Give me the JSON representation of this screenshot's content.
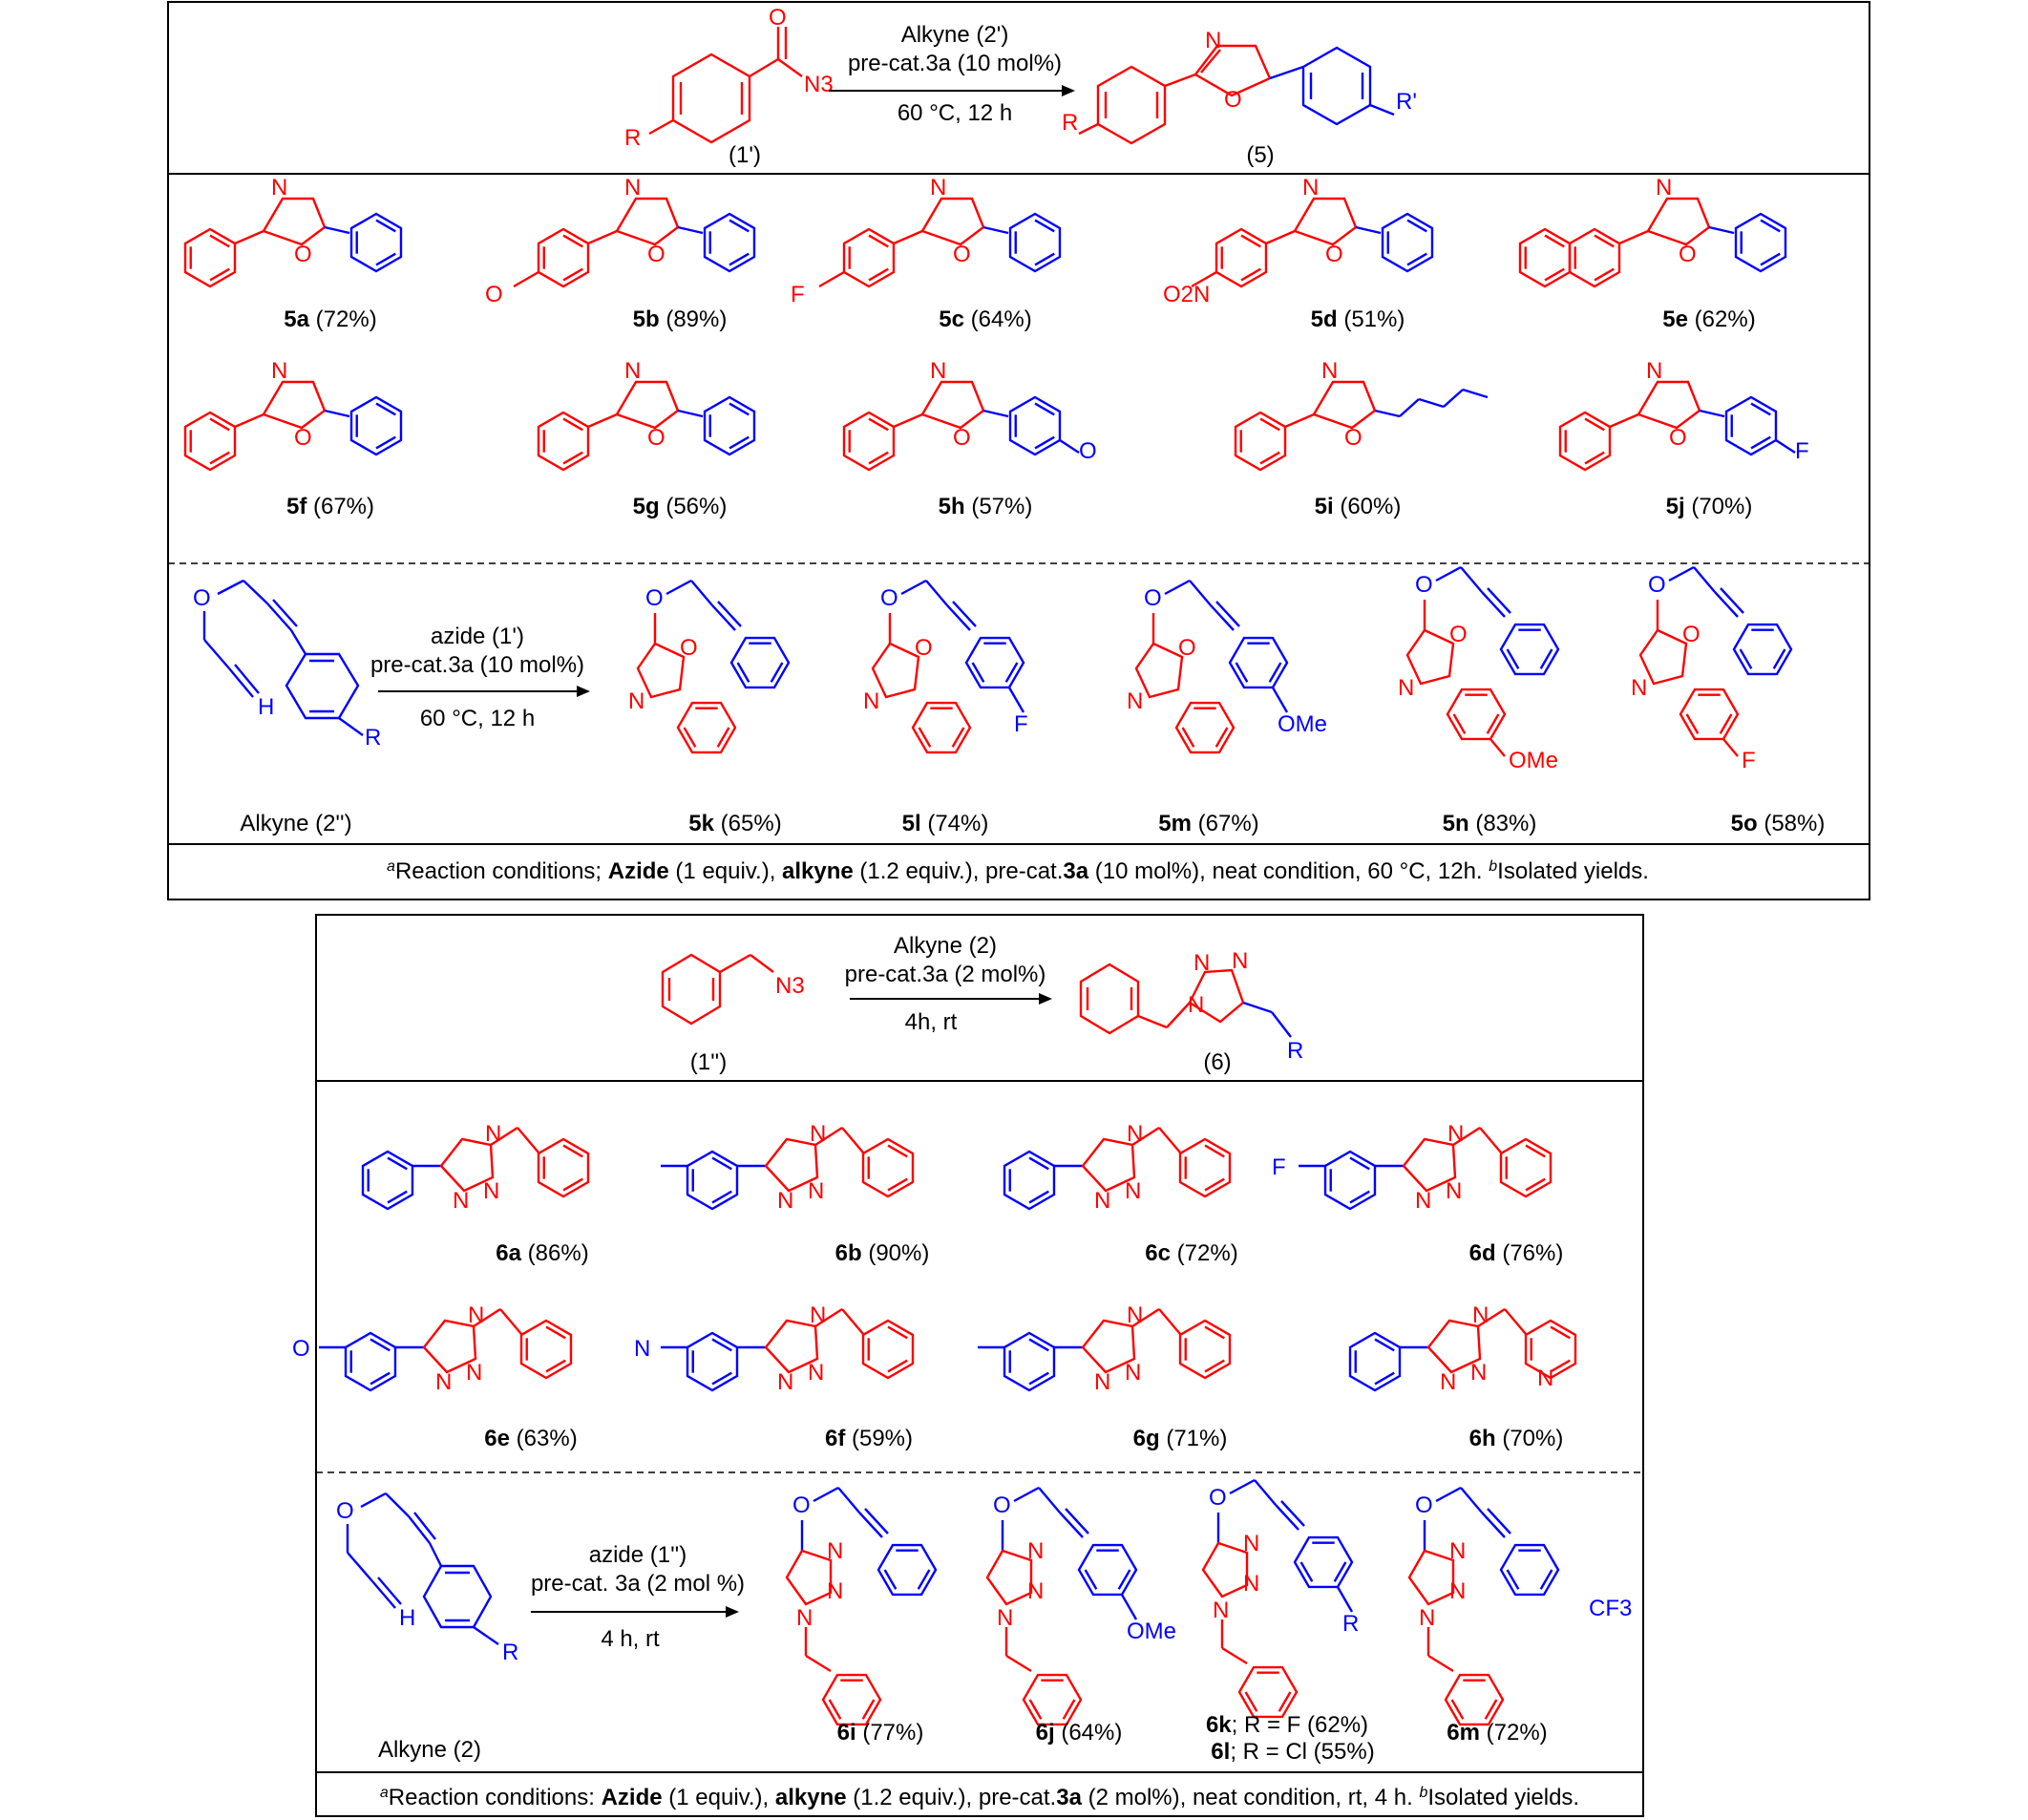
{
  "scheme1": {
    "reactant": "(1')",
    "product": "(5)",
    "reagent_line1": "Alkyne (2')",
    "reagent_line2": "pre-cat.3a (10 mol%)",
    "reagent_line3": "60 °C, 12 h",
    "compounds": [
      {
        "id": "5a",
        "yield": "(72%)"
      },
      {
        "id": "5b",
        "yield": "(89%)"
      },
      {
        "id": "5c",
        "yield": "(64%)"
      },
      {
        "id": "5d",
        "yield": "(51%)"
      },
      {
        "id": "5e",
        "yield": "(62%)"
      },
      {
        "id": "5f",
        "yield": "(67%)"
      },
      {
        "id": "5g",
        "yield": "(56%)"
      },
      {
        "id": "5h",
        "yield": "(57%)"
      },
      {
        "id": "5i",
        "yield": "(60%)"
      },
      {
        "id": "5j",
        "yield": "(70%)"
      }
    ],
    "alkyne_label": "Alkyne (2'')",
    "bottom_reagent_line1": "azide (1')",
    "bottom_reagent_line2": "pre-cat.3a (10 mol%)",
    "bottom_reagent_line3": "60 °C, 12 h",
    "bottom_compounds": [
      {
        "id": "5k",
        "yield": "(65%)"
      },
      {
        "id": "5l",
        "yield": "(74%)"
      },
      {
        "id": "5m",
        "yield": "(67%)"
      },
      {
        "id": "5n",
        "yield": "(83%)"
      },
      {
        "id": "5o",
        "yield": "(58%)"
      }
    ],
    "footnote": "aReaction conditions; Azide (1 equiv.), alkyne (1.2 equiv.), pre-cat.3a (10 mol%), neat condition, 60 °C, 12h. bIsolated yields."
  },
  "scheme2": {
    "reactant": "(1'')",
    "product": "(6)",
    "reagent_line1": "Alkyne (2)",
    "reagent_line2": "pre-cat.3a (2 mol%)",
    "reagent_line3": "4h, rt",
    "compounds": [
      {
        "id": "6a",
        "yield": "(86%)"
      },
      {
        "id": "6b",
        "yield": "(90%)"
      },
      {
        "id": "6c",
        "yield": "(72%)"
      },
      {
        "id": "6d",
        "yield": "(76%)"
      },
      {
        "id": "6e",
        "yield": "(63%)"
      },
      {
        "id": "6f",
        "yield": "(59%)"
      },
      {
        "id": "6g",
        "yield": "(71%)"
      },
      {
        "id": "6h",
        "yield": "(70%)"
      }
    ],
    "alkyne_label": "Alkyne (2)",
    "bottom_reagent_line1": "azide (1'')",
    "bottom_reagent_line2": "pre-cat. 3a (2 mol %)",
    "bottom_reagent_line3": "4 h, rt",
    "bottom_compounds": [
      {
        "id": "6i",
        "yield": "(77%)"
      },
      {
        "id": "6j",
        "yield": "(64%)"
      },
      {
        "id": "6k",
        "yield": "; R = F (62%)"
      },
      {
        "id": "6l",
        "yield": ";  R = Cl (55%)"
      },
      {
        "id": "6m",
        "yield": "(72%)"
      }
    ],
    "footnote": "aReaction conditions: Azide (1 equiv.), alkyne (1.2 equiv.), pre-cat.3a (2 mol%), neat condition, rt, 4 h. bIsolated yields."
  },
  "atoms": {
    "N": "N",
    "O": "O",
    "F": "F",
    "R": "R",
    "R_prime": "R'",
    "H": "H",
    "N3": "N3",
    "OMe": "OMe",
    "CF3": "CF3",
    "O2N": "O2N"
  },
  "colors": {
    "substrate_azide": "#ff0000",
    "substrate_alkyne": "#0000ff",
    "frame": "#000000"
  }
}
